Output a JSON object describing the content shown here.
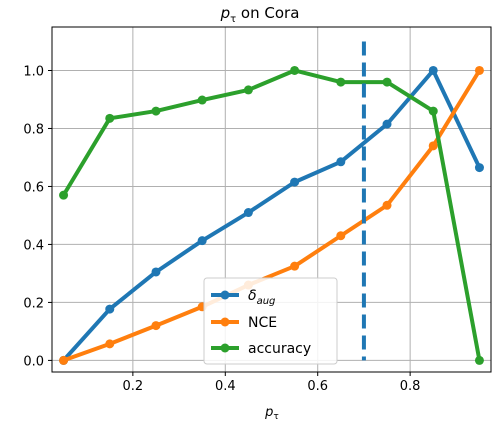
{
  "chart_data": {
    "type": "line",
    "title_main": "p",
    "title_sub": "τ",
    "title_rest": " on Cora",
    "xlabel_main": "p",
    "xlabel_sub": "τ",
    "x": [
      0.05,
      0.15,
      0.25,
      0.35,
      0.45,
      0.55,
      0.65,
      0.75,
      0.85,
      0.95
    ],
    "xlim": [
      0.025,
      0.975
    ],
    "ylim": [
      -0.04,
      1.15
    ],
    "xticks": [
      "0.2",
      "0.4",
      "0.6",
      "0.8"
    ],
    "xtick_values": [
      0.2,
      0.4,
      0.6,
      0.8
    ],
    "yticks": [
      "0.0",
      "0.2",
      "0.4",
      "0.6",
      "0.8",
      "1.0"
    ],
    "ytick_values": [
      0.0,
      0.2,
      0.4,
      0.6,
      0.8,
      1.0
    ],
    "grid": true,
    "legend_position": "lower center",
    "vline": {
      "x": 0.7,
      "y_range": [
        0.0,
        1.1
      ],
      "style": "dashed",
      "color": "#1f77b4"
    },
    "series": [
      {
        "name_main": "δ",
        "name_sub": "aug",
        "color": "#1f77b4",
        "values": [
          0.0,
          0.177,
          0.305,
          0.413,
          0.51,
          0.615,
          0.685,
          0.815,
          1.0,
          0.665
        ]
      },
      {
        "name": "NCE",
        "color": "#ff7f0e",
        "values": [
          0.0,
          0.057,
          0.12,
          0.185,
          0.26,
          0.325,
          0.43,
          0.535,
          0.74,
          1.0
        ]
      },
      {
        "name": "accuracy",
        "color": "#2ca02c",
        "values": [
          0.57,
          0.835,
          0.86,
          0.898,
          0.933,
          1.0,
          0.96,
          0.96,
          0.86,
          0.0
        ]
      }
    ]
  }
}
